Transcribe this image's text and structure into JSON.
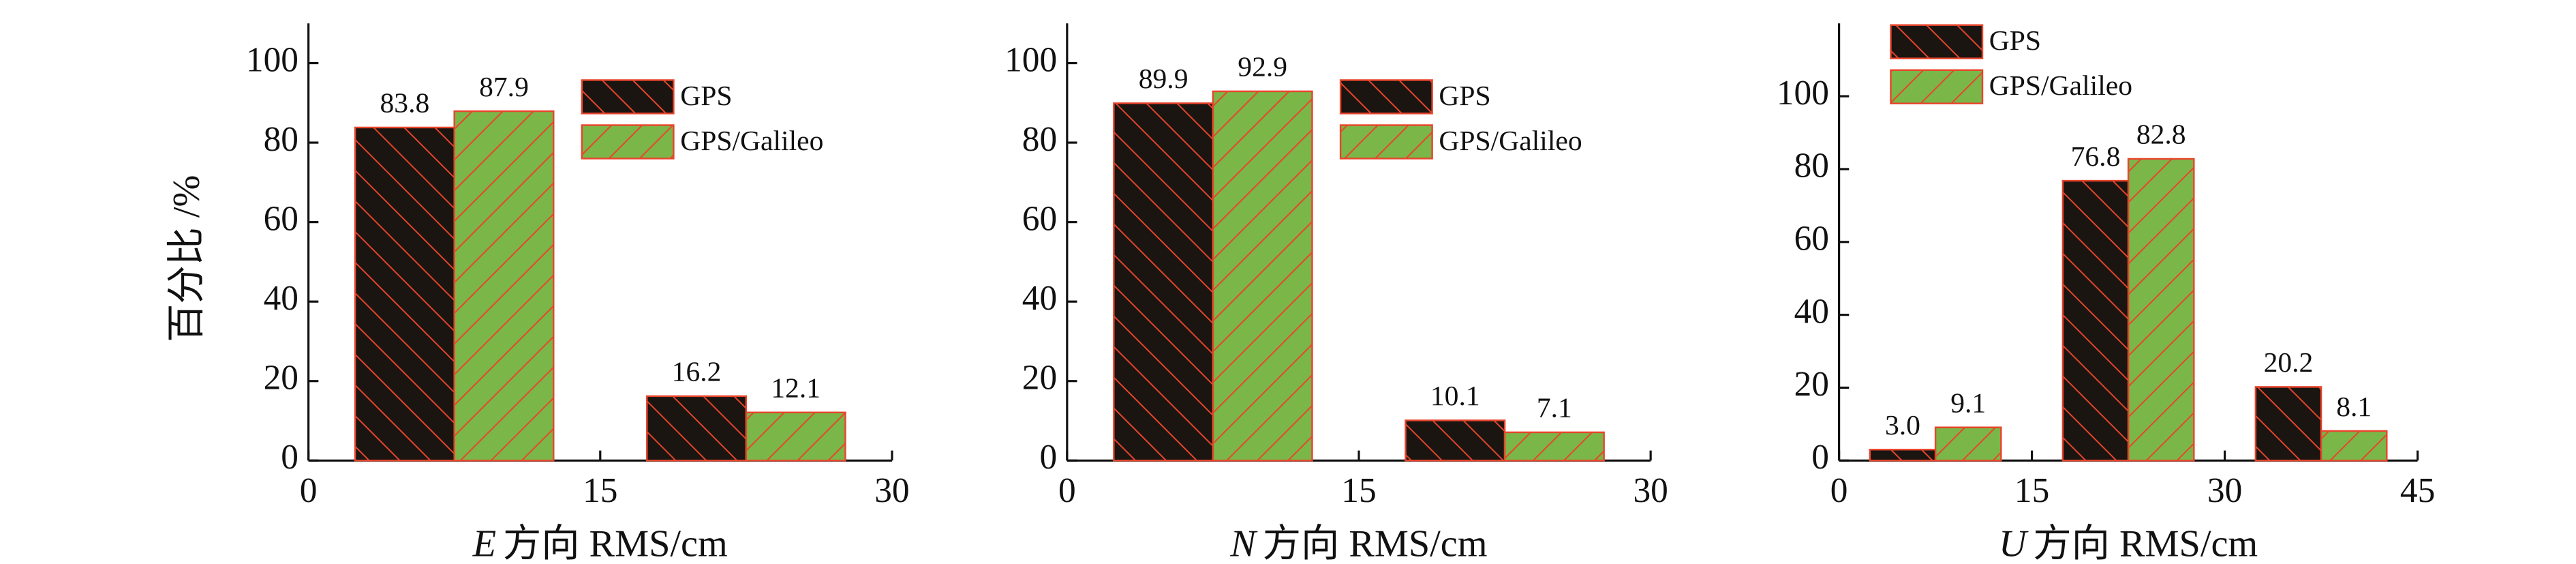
{
  "chart_data": [
    {
      "type": "bar",
      "xlabel_var": "E",
      "xlabel": "方向 RMS/cm",
      "ylabel": "百分比 /%",
      "x": [
        7.5,
        22.5
      ],
      "xlim": [
        0,
        30
      ],
      "xticks": [
        0,
        15,
        30
      ],
      "ylim": [
        0,
        110
      ],
      "yticks": [
        0,
        20,
        40,
        60,
        80,
        100
      ],
      "legend": "upper right",
      "series": [
        {
          "name": "GPS",
          "color": "#1a1511",
          "values": [
            83.8,
            16.2
          ]
        },
        {
          "name": "GPS/Galileo",
          "color": "#7ab648",
          "values": [
            87.9,
            12.1
          ]
        }
      ]
    },
    {
      "type": "bar",
      "xlabel_var": "N",
      "xlabel": "方向 RMS/cm",
      "x": [
        7.5,
        22.5
      ],
      "xlim": [
        0,
        30
      ],
      "xticks": [
        0,
        15,
        30
      ],
      "ylim": [
        0,
        110
      ],
      "yticks": [
        0,
        20,
        40,
        60,
        80,
        100
      ],
      "legend": "upper right",
      "series": [
        {
          "name": "GPS",
          "color": "#1a1511",
          "values": [
            89.9,
            10.1
          ]
        },
        {
          "name": "GPS/Galileo",
          "color": "#7ab648",
          "values": [
            92.9,
            7.1
          ]
        }
      ]
    },
    {
      "type": "bar",
      "xlabel_var": "U",
      "xlabel": "方向 RMS/cm",
      "x": [
        7.5,
        22.5,
        37.5
      ],
      "xlim": [
        0,
        45
      ],
      "xticks": [
        0,
        15,
        30,
        45
      ],
      "ylim": [
        0,
        120
      ],
      "yticks": [
        0,
        20,
        40,
        60,
        80,
        100
      ],
      "legend": "upper left",
      "series": [
        {
          "name": "GPS",
          "color": "#1a1511",
          "values": [
            3.0,
            76.8,
            20.2
          ],
          "value_labels": [
            "3.0",
            "76.8",
            "20.2"
          ]
        },
        {
          "name": "GPS/Galileo",
          "color": "#7ab648",
          "values": [
            9.1,
            82.8,
            8.1
          ]
        }
      ]
    }
  ]
}
